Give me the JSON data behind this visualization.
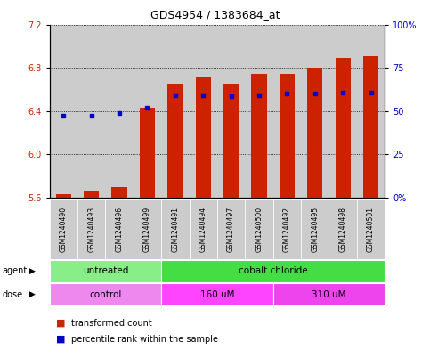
{
  "title": "GDS4954 / 1383684_at",
  "samples": [
    "GSM1240490",
    "GSM1240493",
    "GSM1240496",
    "GSM1240499",
    "GSM1240491",
    "GSM1240494",
    "GSM1240497",
    "GSM1240500",
    "GSM1240492",
    "GSM1240495",
    "GSM1240498",
    "GSM1240501"
  ],
  "transformed_count": [
    5.63,
    5.67,
    5.7,
    6.43,
    6.65,
    6.71,
    6.65,
    6.74,
    6.74,
    6.8,
    6.89,
    6.91
  ],
  "percentile_y": [
    6.36,
    6.36,
    6.38,
    6.43,
    6.55,
    6.55,
    6.54,
    6.55,
    6.56,
    6.56,
    6.57,
    6.57
  ],
  "ylim_left": [
    5.6,
    7.2
  ],
  "ylim_right": [
    0,
    100
  ],
  "yticks_left": [
    5.6,
    6.0,
    6.4,
    6.8,
    7.2
  ],
  "yticks_right": [
    0,
    25,
    50,
    75,
    100
  ],
  "ytick_labels_right": [
    "0%",
    "25",
    "50",
    "75",
    "100%"
  ],
  "bar_bottom": 5.6,
  "bar_color": "#cc2200",
  "percentile_color": "#0000cc",
  "agent_groups": [
    {
      "label": "untreated",
      "start": 0,
      "end": 4,
      "color": "#88ee88"
    },
    {
      "label": "cobalt chloride",
      "start": 4,
      "end": 12,
      "color": "#44dd44"
    }
  ],
  "dose_groups": [
    {
      "label": "control",
      "start": 0,
      "end": 4,
      "color": "#ee88ee"
    },
    {
      "label": "160 uM",
      "start": 4,
      "end": 8,
      "color": "#ff44ff"
    },
    {
      "label": "310 uM",
      "start": 8,
      "end": 12,
      "color": "#ee44ee"
    }
  ],
  "bg_color": "#ffffff",
  "grid_color": "#000000",
  "agent_label": "agent",
  "dose_label": "dose",
  "legend_items": [
    "transformed count",
    "percentile rank within the sample"
  ],
  "legend_colors": [
    "#cc2200",
    "#0000cc"
  ],
  "sample_bg_color": "#cccccc"
}
